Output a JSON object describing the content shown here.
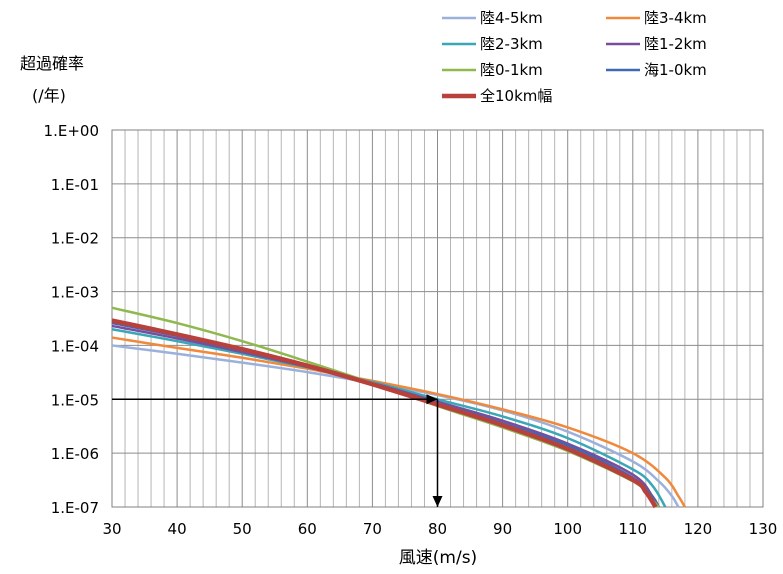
{
  "chart_data": {
    "type": "line",
    "ylabel_line1": "超過確率",
    "ylabel_line2": "(/年)",
    "xlabel": "風速(m/s)",
    "xlim": [
      30,
      130
    ],
    "x_ticks": [
      "30",
      "40",
      "50",
      "60",
      "70",
      "80",
      "90",
      "100",
      "110",
      "120",
      "130"
    ],
    "y_scale": "log",
    "ylim": [
      1e-07,
      1
    ],
    "y_ticks": [
      "1.E+00",
      "1.E-01",
      "1.E-02",
      "1.E-03",
      "1.E-04",
      "1.E-05",
      "1.E-06",
      "1.E-07"
    ],
    "grid": true,
    "legend_position": "top-right",
    "series": [
      {
        "name": "陸4-5km",
        "color": "#9bb1dc",
        "points": [
          [
            30,
            0.0001
          ],
          [
            40,
            7e-05
          ],
          [
            50,
            4.8e-05
          ],
          [
            60,
            3.2e-05
          ],
          [
            70,
            2e-05
          ],
          [
            80,
            1.2e-05
          ],
          [
            90,
            6.2e-06
          ],
          [
            100,
            2.5e-06
          ],
          [
            110,
            7e-07
          ],
          [
            114,
            3e-07
          ],
          [
            116,
            1.6e-07
          ],
          [
            117,
            1e-07
          ]
        ]
      },
      {
        "name": "陸3-4km",
        "color": "#f0893b",
        "points": [
          [
            30,
            0.00014
          ],
          [
            40,
            9e-05
          ],
          [
            50,
            5.9e-05
          ],
          [
            60,
            3.7e-05
          ],
          [
            70,
            2.2e-05
          ],
          [
            80,
            1.25e-05
          ],
          [
            90,
            6.5e-06
          ],
          [
            100,
            3e-06
          ],
          [
            110,
            1e-06
          ],
          [
            115,
            3.5e-07
          ],
          [
            117,
            1.6e-07
          ],
          [
            118,
            1e-07
          ]
        ]
      },
      {
        "name": "陸2-3km",
        "color": "#3aa7b6",
        "points": [
          [
            30,
            0.0002
          ],
          [
            40,
            0.00012
          ],
          [
            50,
            7e-05
          ],
          [
            60,
            3.9e-05
          ],
          [
            70,
            2.1e-05
          ],
          [
            80,
            1e-05
          ],
          [
            90,
            4.8e-06
          ],
          [
            100,
            1.9e-06
          ],
          [
            110,
            5e-07
          ],
          [
            113,
            2.5e-07
          ],
          [
            115,
            1e-07
          ]
        ]
      },
      {
        "name": "陸1-2km",
        "color": "#7a4c9e",
        "points": [
          [
            30,
            0.00023
          ],
          [
            40,
            0.000135
          ],
          [
            50,
            7.5e-05
          ],
          [
            60,
            4e-05
          ],
          [
            70,
            2e-05
          ],
          [
            80,
            9e-06
          ],
          [
            90,
            4e-06
          ],
          [
            100,
            1.5e-06
          ],
          [
            110,
            4e-07
          ],
          [
            113,
            1.6e-07
          ],
          [
            114,
            1e-07
          ]
        ]
      },
      {
        "name": "海1-0km",
        "color": "#3f6ab3",
        "points": [
          [
            30,
            0.00026
          ],
          [
            40,
            0.00015
          ],
          [
            50,
            8e-05
          ],
          [
            60,
            4.1e-05
          ],
          [
            70,
            1.9e-05
          ],
          [
            80,
            8.5e-06
          ],
          [
            90,
            3.6e-06
          ],
          [
            100,
            1.4e-06
          ],
          [
            110,
            3.5e-07
          ],
          [
            113,
            1.5e-07
          ],
          [
            114,
            1e-07
          ]
        ]
      },
      {
        "name": "陸0-1km",
        "color": "#8fb84e",
        "points": [
          [
            30,
            0.0005
          ],
          [
            40,
            0.00026
          ],
          [
            50,
            0.00012
          ],
          [
            60,
            5e-05
          ],
          [
            70,
            2e-05
          ],
          [
            80,
            7.5e-06
          ],
          [
            90,
            3e-06
          ],
          [
            100,
            1.1e-06
          ],
          [
            110,
            3e-07
          ],
          [
            112,
            1.8e-07
          ],
          [
            114,
            1e-07
          ]
        ]
      },
      {
        "name": "全10km幅",
        "color": "#b8413c",
        "points": [
          [
            30,
            0.00029
          ],
          [
            40,
            0.00016
          ],
          [
            50,
            8.5e-05
          ],
          [
            60,
            4.2e-05
          ],
          [
            70,
            1.9e-05
          ],
          [
            80,
            8e-06
          ],
          [
            90,
            3.3e-06
          ],
          [
            100,
            1.2e-06
          ],
          [
            110,
            3.2e-07
          ],
          [
            112,
            1.9e-07
          ],
          [
            113.5,
            1e-07
          ]
        ]
      }
    ],
    "legend_order": [
      0,
      1,
      2,
      3,
      5,
      4,
      6
    ],
    "annotation_arrows": [
      {
        "from": [
          30,
          1e-05
        ],
        "to": [
          80,
          1e-05
        ]
      },
      {
        "from": [
          80,
          1e-05
        ],
        "to": [
          80,
          1e-07
        ]
      }
    ]
  }
}
